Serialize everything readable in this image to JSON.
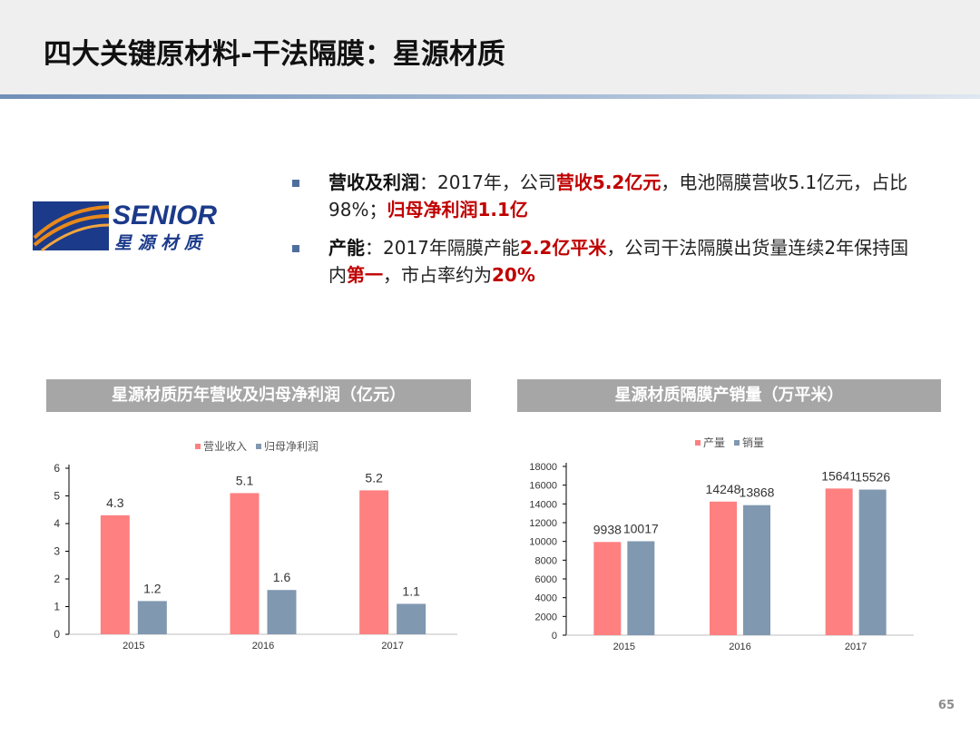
{
  "slide": {
    "title": "四大关键原材料-干法隔膜：星源材质",
    "page_number": "65"
  },
  "logo": {
    "text_en": "SENIOR",
    "text_cn": "星 源 材 质",
    "colors": {
      "blue": "#1b3a8a",
      "orange": "#e8891b"
    }
  },
  "bullets": [
    {
      "label": "营收及利润",
      "segments": [
        {
          "text": "：2017年，公司",
          "style": "normal"
        },
        {
          "text": "营收5.2亿元",
          "style": "red"
        },
        {
          "text": "，电池隔膜营收5.1亿元，占比98%；",
          "style": "normal"
        },
        {
          "text": "归母净利润1.1亿",
          "style": "red"
        }
      ]
    },
    {
      "label": "产能",
      "segments": [
        {
          "text": "：2017年隔膜产能",
          "style": "normal"
        },
        {
          "text": "2.2亿平米",
          "style": "red"
        },
        {
          "text": "，公司干法隔膜出货量连续2年保持国内",
          "style": "normal"
        },
        {
          "text": "第一",
          "style": "red"
        },
        {
          "text": "，市占率约为",
          "style": "normal"
        },
        {
          "text": "20%",
          "style": "red"
        }
      ]
    }
  ],
  "charts": {
    "left_title": "星源材质历年营收及归母净利润（亿元）",
    "right_title": "星源材质隔膜产销量（万平米）"
  },
  "chart_data": [
    {
      "type": "bar",
      "title": "星源材质历年营收及归母净利润（亿元）",
      "categories": [
        "2015",
        "2016",
        "2017"
      ],
      "series": [
        {
          "name": "营业收入",
          "values": [
            4.3,
            5.1,
            5.2
          ],
          "color": "#fe8080"
        },
        {
          "name": "归母净利润",
          "values": [
            1.2,
            1.6,
            1.1
          ],
          "color": "#8098b0"
        }
      ],
      "ylim": [
        0,
        6
      ],
      "yticks": [
        0,
        1,
        2,
        3,
        4,
        5,
        6
      ],
      "legend": "top-center",
      "grid": false
    },
    {
      "type": "bar",
      "title": "星源材质隔膜产销量（万平米）",
      "categories": [
        "2015",
        "2016",
        "2017"
      ],
      "series": [
        {
          "name": "产量",
          "values": [
            9938,
            14248,
            15641
          ],
          "color": "#fe8080"
        },
        {
          "name": "销量",
          "values": [
            10017,
            13868,
            15526
          ],
          "color": "#8098b0"
        }
      ],
      "ylim": [
        0,
        18000
      ],
      "yticks": [
        0,
        2000,
        4000,
        6000,
        8000,
        10000,
        12000,
        14000,
        16000,
        18000
      ],
      "legend": "top-center",
      "grid": false
    }
  ]
}
